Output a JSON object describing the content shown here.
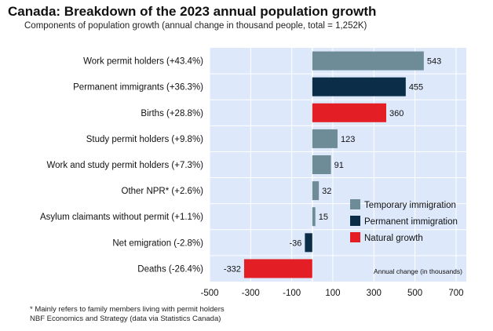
{
  "title": "Canada: Breakdown of the 2023 annual population growth",
  "subtitle": "Components of population growth (annual change in thousand people, total = 1,252K)",
  "footnotes": [
    "* Mainly refers to family members living with permit holders",
    "NBF Economics and Strategy (data via Statistics Canada)"
  ],
  "chart_data": {
    "type": "bar",
    "orientation": "horizontal",
    "categories": [
      "Work permit holders (+43.4%)",
      "Permanent immigrants (+36.3%)",
      "Births (+28.8%)",
      "Study permit holders (+9.8%)",
      "Work and study permit holders (+7.3%)",
      "Other NPR* (+2.6%)",
      "Asylum claimants without permit (+1.1%)",
      "Net emigration (-2.8%)",
      "Deaths (-26.4%)"
    ],
    "values": [
      543,
      455,
      360,
      123,
      91,
      32,
      15,
      -36,
      -332
    ],
    "value_labels": [
      "543",
      "455",
      "360",
      "123",
      "91",
      "32",
      "15",
      "-36",
      "-332"
    ],
    "groups": [
      "Temporary immigration",
      "Permanent immigration",
      "Natural growth",
      "Temporary immigration",
      "Temporary immigration",
      "Temporary immigration",
      "Temporary immigration",
      "Permanent immigration",
      "Natural growth"
    ],
    "legend": [
      {
        "name": "Temporary immigration",
        "color": "#6e8c98"
      },
      {
        "name": "Permanent immigration",
        "color": "#0c2d48"
      },
      {
        "name": "Natural growth",
        "color": "#e31e24"
      }
    ],
    "legend_position": "right",
    "xlabel": "Annual change (in thousands)",
    "xlim": [
      -500,
      750
    ],
    "xticks": [
      -500,
      -300,
      -100,
      100,
      300,
      500,
      700
    ],
    "xtick_labels": [
      "-500",
      "-300",
      "-100",
      "100",
      "300",
      "500",
      "700"
    ],
    "colors": {
      "plot_background": "#dde8fb",
      "gridline": "#ffffff"
    },
    "grid": true
  }
}
